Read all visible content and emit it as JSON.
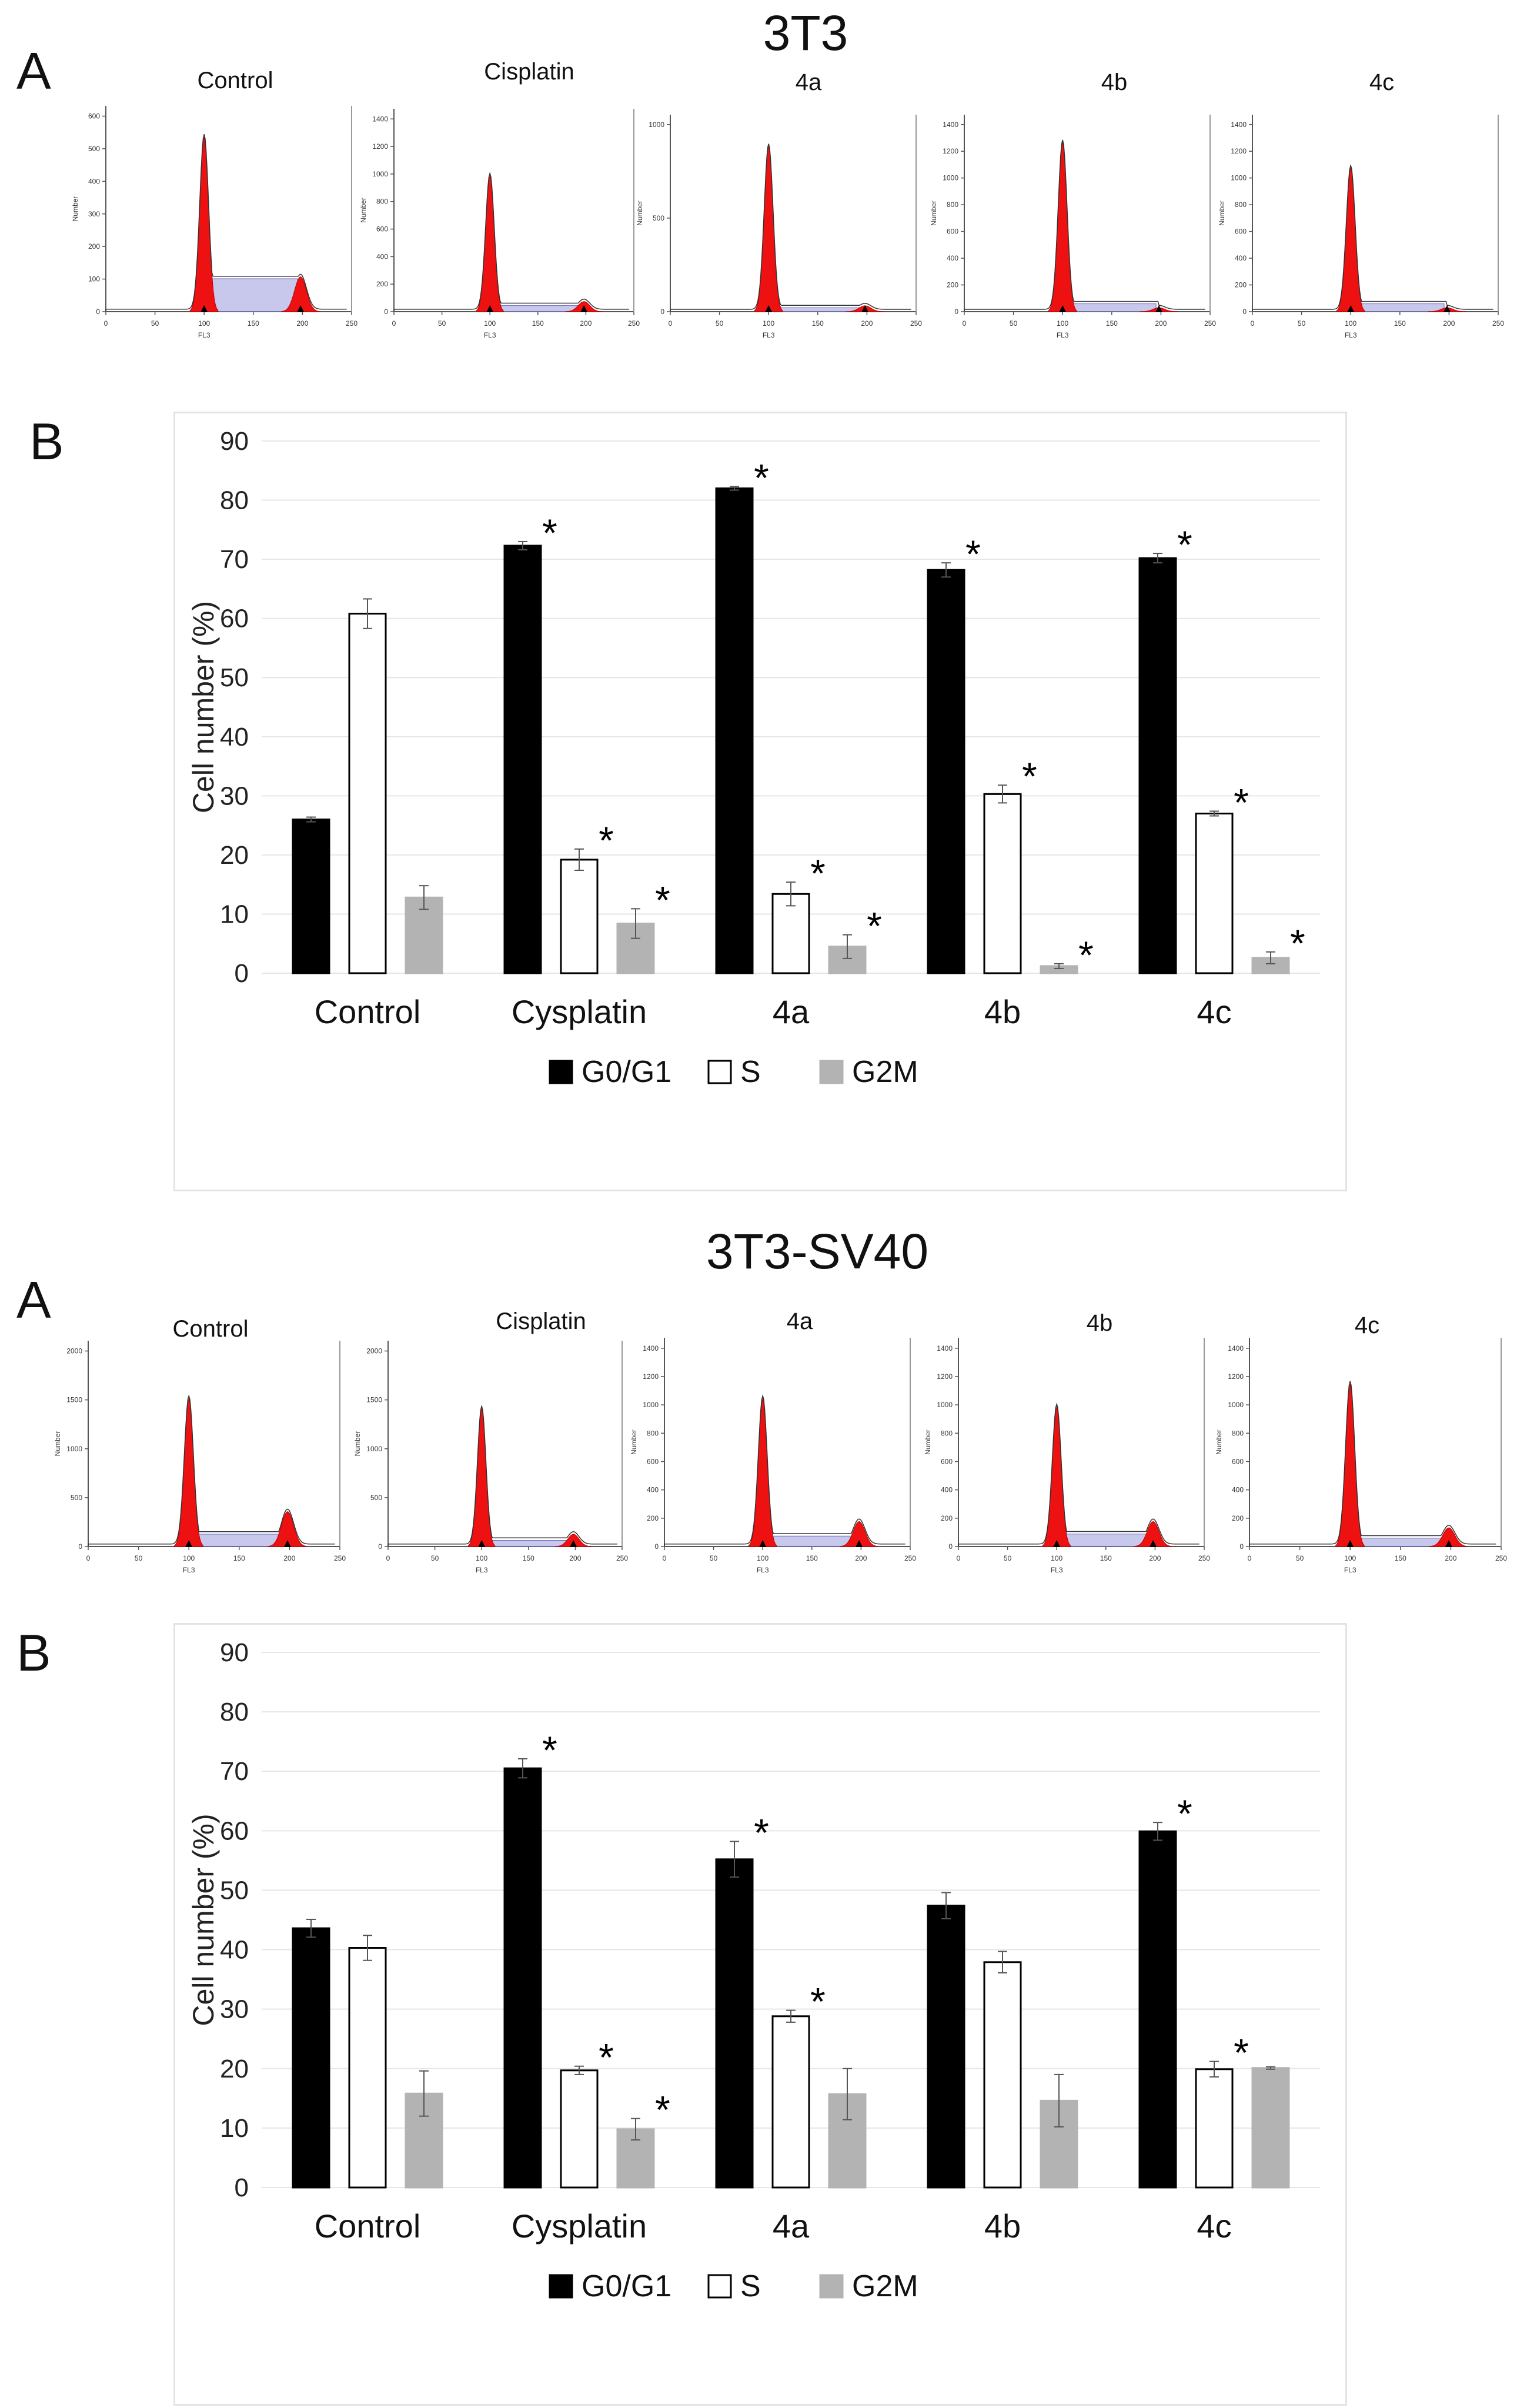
{
  "sections": [
    {
      "title": "3T3",
      "panel_a_letter": "A",
      "panel_b_letter": "B",
      "histograms": [
        {
          "label": "Control",
          "y_ticks": [
            "0",
            "100",
            "200",
            "300",
            "400",
            "500",
            "600"
          ],
          "y_title": "Number",
          "x_ticks": [
            "0",
            "50",
            "100",
            "150",
            "200",
            "250"
          ],
          "x_title": "FL3",
          "g1_height": 0.85,
          "g2_height": 0.17,
          "s_level": 0.16
        },
        {
          "label": "Cisplatin",
          "y_ticks": [
            "0",
            "200",
            "400",
            "600",
            "800",
            "1000",
            "1200",
            "1400"
          ],
          "y_title": "Number",
          "x_ticks": [
            "0",
            "50",
            "100",
            "150",
            "200",
            "250"
          ],
          "x_title": "FL3",
          "g1_height": 0.67,
          "g2_height": 0.05,
          "s_level": 0.03
        },
        {
          "label": "4a",
          "y_ticks": [
            "0",
            "500",
            "1000"
          ],
          "y_title": "Number",
          "x_ticks": [
            "0",
            "50",
            "100",
            "150",
            "200",
            "250"
          ],
          "x_title": "FL3",
          "g1_height": 0.84,
          "g2_height": 0.03,
          "s_level": 0.02
        },
        {
          "label": "4b",
          "y_ticks": [
            "0",
            "200",
            "400",
            "600",
            "800",
            "1000",
            "1200",
            "1400"
          ],
          "y_title": "Number",
          "x_ticks": [
            "0",
            "50",
            "100",
            "150",
            "200",
            "250"
          ],
          "x_title": "FL3",
          "g1_height": 0.86,
          "g2_height": 0.02,
          "s_level": 0.04
        },
        {
          "label": "4c",
          "y_ticks": [
            "0",
            "200",
            "400",
            "600",
            "800",
            "1000",
            "1200",
            "1400"
          ],
          "y_title": "Number",
          "x_ticks": [
            "0",
            "50",
            "100",
            "150",
            "200",
            "250"
          ],
          "x_title": "FL3",
          "g1_height": 0.73,
          "g2_height": 0.02,
          "s_level": 0.04
        }
      ],
      "star": "*"
    },
    {
      "title": "3T3-SV40",
      "panel_a_letter": "A",
      "panel_b_letter": "B",
      "histograms": [
        {
          "label": "Control",
          "y_ticks": [
            "0",
            "500",
            "1000",
            "1500",
            "2000"
          ],
          "y_title": "Number",
          "x_ticks": [
            "0",
            "50",
            "100",
            "150",
            "200",
            "250"
          ],
          "x_title": "FL3",
          "g1_height": 0.72,
          "g2_height": 0.17,
          "s_level": 0.06
        },
        {
          "label": "Cisplatin",
          "y_ticks": [
            "0",
            "500",
            "1000",
            "1500",
            "2000"
          ],
          "y_title": "Number",
          "x_ticks": [
            "0",
            "50",
            "100",
            "150",
            "200",
            "250"
          ],
          "x_title": "FL3",
          "g1_height": 0.67,
          "g2_height": 0.06,
          "s_level": 0.03
        },
        {
          "label": "4a",
          "y_ticks": [
            "0",
            "200",
            "400",
            "600",
            "800",
            "1000",
            "1200",
            "1400"
          ],
          "y_title": "Number",
          "x_ticks": [
            "0",
            "50",
            "100",
            "150",
            "200",
            "250"
          ],
          "x_title": "FL3",
          "g1_height": 0.71,
          "g2_height": 0.12,
          "s_level": 0.05
        },
        {
          "label": "4b",
          "y_ticks": [
            "0",
            "200",
            "400",
            "600",
            "800",
            "1000",
            "1200",
            "1400"
          ],
          "y_title": "Number",
          "x_ticks": [
            "0",
            "50",
            "100",
            "150",
            "200",
            "250"
          ],
          "x_title": "FL3",
          "g1_height": 0.67,
          "g2_height": 0.12,
          "s_level": 0.06
        },
        {
          "label": "4c",
          "y_ticks": [
            "0",
            "200",
            "400",
            "600",
            "800",
            "1000",
            "1200",
            "1400"
          ],
          "y_title": "Number",
          "x_ticks": [
            "0",
            "50",
            "100",
            "150",
            "200",
            "250"
          ],
          "x_title": "FL3",
          "g1_height": 0.78,
          "g2_height": 0.09,
          "s_level": 0.04
        }
      ],
      "star": "*"
    }
  ],
  "colors": {
    "g0g1": "#000000",
    "s": "#ffffff",
    "g2m": "#b3b3b3",
    "grid": "#e6e6e6",
    "peak": "#ee1111",
    "s_fill": "#9b9bdc"
  },
  "chart_data": [
    {
      "type": "bar",
      "title": "3T3",
      "ylabel": "Cell number (%)",
      "xlabel": "",
      "ylim": [
        0,
        90
      ],
      "yticks": [
        0,
        10,
        20,
        30,
        40,
        50,
        60,
        70,
        80,
        90
      ],
      "grid": true,
      "legend": "bottom",
      "categories": [
        "Control",
        "Cysplatin",
        "4a",
        "4b",
        "4c"
      ],
      "series": [
        {
          "name": "G0/G1",
          "values": [
            26,
            72.3,
            82,
            68.2,
            70.2
          ],
          "errors": [
            0.4,
            0.7,
            0.3,
            1.2,
            0.8
          ],
          "significant": [
            false,
            true,
            true,
            true,
            true
          ]
        },
        {
          "name": "S",
          "values": [
            60.8,
            19.2,
            13.4,
            30.3,
            27
          ],
          "errors": [
            2.5,
            1.8,
            2,
            1.5,
            0.4
          ],
          "significant": [
            false,
            true,
            true,
            true,
            true
          ]
        },
        {
          "name": "G2M",
          "values": [
            12.8,
            8.4,
            4.5,
            1.2,
            2.6
          ],
          "errors": [
            2,
            2.5,
            2,
            0.4,
            1
          ],
          "significant": [
            false,
            true,
            true,
            true,
            true
          ]
        }
      ]
    },
    {
      "type": "bar",
      "title": "3T3-SV40",
      "ylabel": "Cell number (%)",
      "xlabel": "",
      "ylim": [
        0,
        90
      ],
      "yticks": [
        0,
        10,
        20,
        30,
        40,
        50,
        60,
        70,
        80,
        90
      ],
      "grid": true,
      "legend": "bottom",
      "categories": [
        "Control",
        "Cysplatin",
        "4a",
        "4b",
        "4c"
      ],
      "series": [
        {
          "name": "G0/G1",
          "values": [
            43.6,
            70.5,
            55.2,
            47.4,
            59.9
          ],
          "errors": [
            1.5,
            1.6,
            3,
            2.2,
            1.5
          ],
          "significant": [
            false,
            true,
            true,
            false,
            true
          ]
        },
        {
          "name": "S",
          "values": [
            40.3,
            19.7,
            28.8,
            37.9,
            19.9
          ],
          "errors": [
            2.1,
            0.7,
            1,
            1.8,
            1.3
          ],
          "significant": [
            false,
            true,
            true,
            false,
            true
          ]
        },
        {
          "name": "G2M",
          "values": [
            15.8,
            9.8,
            15.7,
            14.6,
            20.1
          ],
          "errors": [
            3.8,
            1.8,
            4.3,
            4.4,
            0.2
          ],
          "significant": [
            false,
            true,
            false,
            false,
            false
          ]
        }
      ]
    }
  ]
}
